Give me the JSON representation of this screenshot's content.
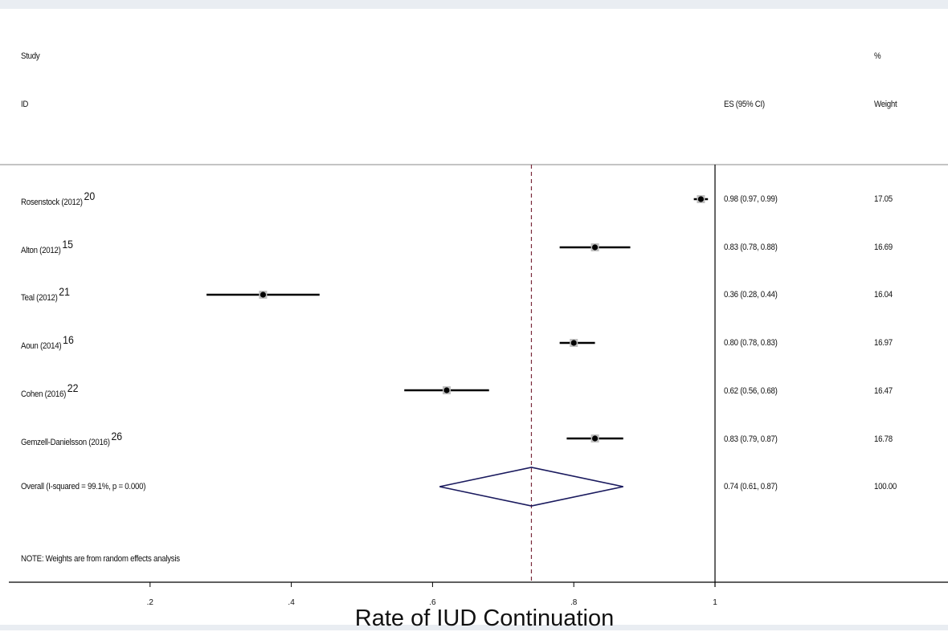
{
  "chart_data": {
    "type": "forest",
    "xlabel": "Rate of IUD Continuation",
    "x_ticks": [
      ".2",
      ".4",
      ".6",
      ".8",
      "1"
    ],
    "x_tick_values": [
      0.2,
      0.4,
      0.6,
      0.8,
      1.0
    ],
    "xlim": [
      0.0,
      1.0
    ],
    "null_line": 1.0,
    "overall_line": 0.74,
    "headers": {
      "study_line1": "Study",
      "study_line2": "ID",
      "es": "ES (95% CI)",
      "weight_line1": "%",
      "weight_line2": "Weight"
    },
    "studies": [
      {
        "label": "Rosenstock (2012)",
        "ref": "20",
        "es": 0.98,
        "lo": 0.97,
        "hi": 0.99,
        "es_text": "0.98 (0.97, 0.99)",
        "weight": "17.05"
      },
      {
        "label": "Alton (2012)",
        "ref": "15",
        "es": 0.83,
        "lo": 0.78,
        "hi": 0.88,
        "es_text": "0.83 (0.78, 0.88)",
        "weight": "16.69"
      },
      {
        "label": "Teal (2012)",
        "ref": "21",
        "es": 0.36,
        "lo": 0.28,
        "hi": 0.44,
        "es_text": "0.36 (0.28, 0.44)",
        "weight": "16.04"
      },
      {
        "label": "Aoun (2014)",
        "ref": "16",
        "es": 0.8,
        "lo": 0.78,
        "hi": 0.83,
        "es_text": "0.80 (0.78, 0.83)",
        "weight": "16.97"
      },
      {
        "label": "Cohen (2016)",
        "ref": "22",
        "es": 0.62,
        "lo": 0.56,
        "hi": 0.68,
        "es_text": "0.62 (0.56, 0.68)",
        "weight": "16.47"
      },
      {
        "label": "Gemzell-Danielsson (2016)",
        "ref": "26",
        "es": 0.83,
        "lo": 0.79,
        "hi": 0.87,
        "es_text": "0.83 (0.79, 0.87)",
        "weight": "16.78"
      }
    ],
    "overall": {
      "label": "Overall  (I-squared = 99.1%, p = 0.000)",
      "es": 0.74,
      "lo": 0.61,
      "hi": 0.87,
      "es_text": "0.74 (0.61, 0.87)",
      "weight": "100.00"
    },
    "note": "NOTE: Weights are from random effects analysis",
    "colors": {
      "diamond": "#1a1a5e",
      "overall_line": "#7a2a3a",
      "axis": "#000000",
      "header_rule": "#888888"
    }
  }
}
